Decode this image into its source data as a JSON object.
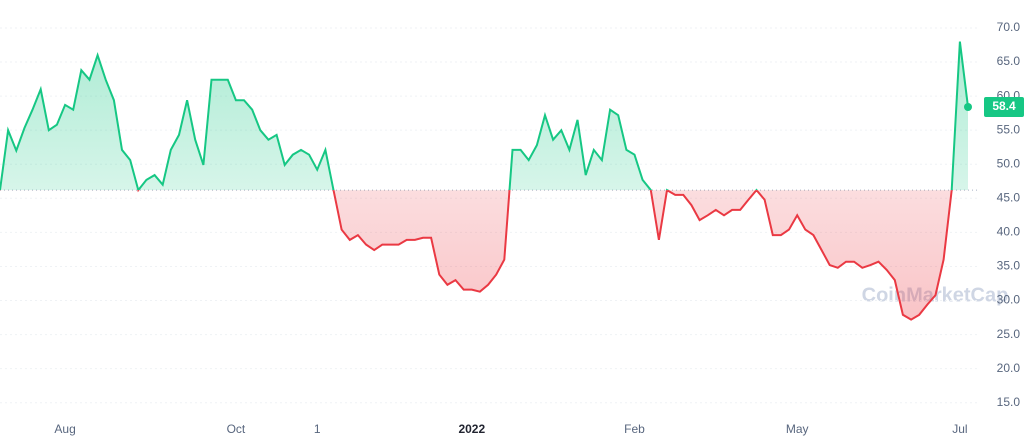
{
  "chart_data": {
    "type": "line",
    "watermark": "CoinMarketCap",
    "categories": [
      null,
      null,
      null,
      null,
      null,
      null,
      null,
      null,
      "Aug",
      null,
      null,
      null,
      null,
      null,
      null,
      null,
      null,
      null,
      null,
      null,
      null,
      null,
      null,
      null,
      null,
      null,
      null,
      null,
      null,
      "Oct",
      null,
      null,
      null,
      null,
      null,
      null,
      null,
      null,
      null,
      "1",
      null,
      null,
      null,
      null,
      null,
      null,
      null,
      null,
      null,
      null,
      null,
      null,
      null,
      null,
      null,
      null,
      null,
      null,
      "2022",
      null,
      null,
      null,
      null,
      null,
      null,
      null,
      null,
      null,
      null,
      null,
      null,
      null,
      null,
      null,
      null,
      null,
      null,
      null,
      "Feb",
      null,
      null,
      null,
      null,
      null,
      null,
      null,
      null,
      null,
      null,
      null,
      null,
      null,
      null,
      null,
      null,
      null,
      null,
      null,
      "May",
      null,
      null,
      null,
      null,
      null,
      null,
      null,
      null,
      null,
      null,
      null,
      null,
      null,
      null,
      null,
      null,
      null,
      null,
      null,
      "Jul",
      null
    ],
    "series": [
      {
        "color": "#16c784",
        "below_color": "#ea3943",
        "values": [
          46.2,
          55,
          52,
          55.3,
          58,
          61,
          55,
          55.8,
          58.7,
          58,
          63.8,
          62.4,
          66,
          62.4,
          59.4,
          52.1,
          50.6,
          46.2,
          47.7,
          48.4,
          47,
          52.1,
          54.3,
          59.4,
          53.6,
          49.9,
          62.4,
          62.4,
          62.4,
          59.4,
          59.4,
          58,
          55,
          53.6,
          54.3,
          49.9,
          51.4,
          52.1,
          51.4,
          49.2,
          52.1,
          46.2,
          40.4,
          38.9,
          39.6,
          38.2,
          37.4,
          38.2,
          38.2,
          38.2,
          38.9,
          38.9,
          39.2,
          39.2,
          33.8,
          32.3,
          33,
          31.6,
          31.6,
          31.3,
          32.3,
          33.8,
          36,
          52.1,
          52.1,
          50.6,
          52.8,
          57.2,
          53.6,
          55,
          52.1,
          56.5,
          48.4,
          52.1,
          50.6,
          58,
          57.2,
          52.1,
          51.4,
          47.7,
          46.2,
          38.9,
          46.2,
          45.5,
          45.5,
          44,
          41.8,
          42.5,
          43.3,
          42.5,
          43.3,
          43.3,
          44.8,
          46.2,
          44.8,
          39.6,
          39.6,
          40.4,
          42.5,
          40.4,
          39.6,
          37.4,
          35.2,
          34.8,
          35.7,
          35.7,
          34.8,
          35.2,
          35.7,
          34.5,
          33,
          27.9,
          27.2,
          27.9,
          29.4,
          30.8,
          36,
          46.2,
          68,
          58.4
        ]
      }
    ],
    "baseline": 46.2,
    "ylim": [
      13.2,
      74.1
    ],
    "yticks": [
      {
        "value": 15,
        "label": "15.0"
      },
      {
        "value": 20,
        "label": "20.0"
      },
      {
        "value": 25,
        "label": "25.0"
      },
      {
        "value": 30,
        "label": "30.0"
      },
      {
        "value": 35,
        "label": "35.0"
      },
      {
        "value": 40,
        "label": "40.0"
      },
      {
        "value": 45,
        "label": "45.0"
      },
      {
        "value": 50,
        "label": "50.0"
      },
      {
        "value": 55,
        "label": "55.0"
      },
      {
        "value": 60,
        "label": "60.0"
      },
      {
        "value": 65,
        "label": "65.0"
      },
      {
        "value": 70,
        "label": "70.0"
      }
    ],
    "grid": true
  }
}
